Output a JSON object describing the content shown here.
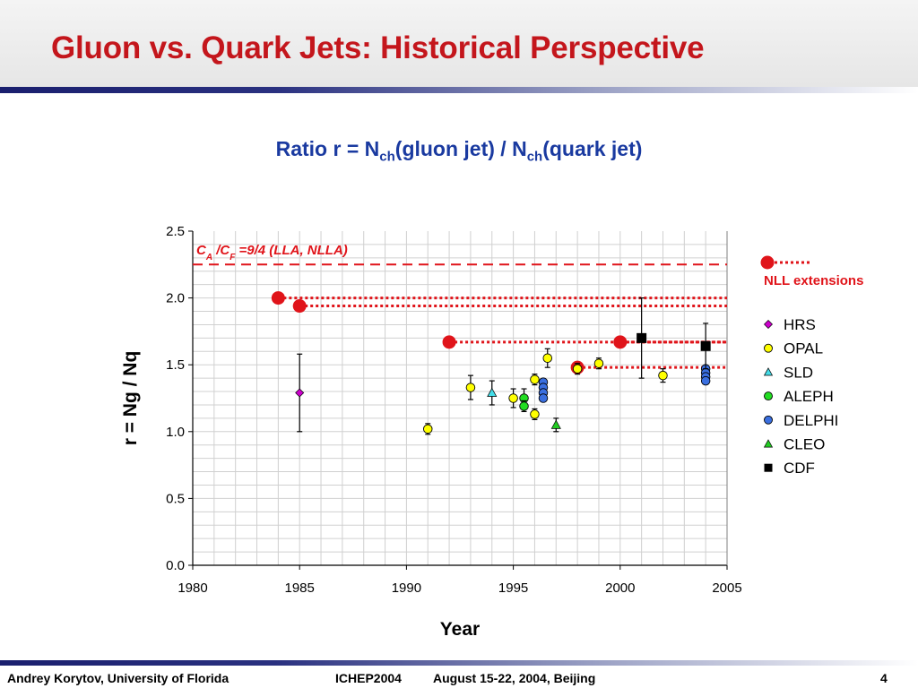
{
  "slide": {
    "title": "Gluon vs. Quark Jets: Historical Perspective",
    "subtitle_main": "Ratio r = N",
    "subtitle_sub1": "ch",
    "subtitle_mid": "(gluon jet) / N",
    "subtitle_sub2": "ch",
    "subtitle_end": "(quark jet)",
    "footer_author": "Andrey Korytov, University of Florida",
    "footer_conf": "ICHEP2004",
    "footer_dates": "August 15-22, 2004, Beijing",
    "footer_page": "4"
  },
  "chart_data": {
    "type": "scatter",
    "xlabel": "Year",
    "ylabel": "r = Ng / Nq",
    "xlim": [
      1980,
      2005
    ],
    "ylim": [
      0,
      2.5
    ],
    "xticks": [
      "1980",
      "1985",
      "1990",
      "1995",
      "2000",
      "2005"
    ],
    "yticks": [
      "0.0",
      "0.5",
      "1.0",
      "1.5",
      "2.0",
      "2.5"
    ],
    "grid": true,
    "legend_position": "right",
    "lla_line": {
      "value": 2.25,
      "label_ca": "C",
      "label_ca_sub": "A",
      "label_sep": " /C",
      "label_cf_sub": "F",
      "label_rest": " =9/4 (LLA, NLLA)",
      "color": "#e0141a"
    },
    "nll_extensions": {
      "name": "NLL extensions",
      "color": "#e0141a",
      "lines": [
        {
          "year": 1984,
          "value": 2.0
        },
        {
          "year": 1985,
          "value": 1.94
        },
        {
          "year": 1992,
          "value": 1.67
        },
        {
          "year": 1998,
          "value": 1.48
        },
        {
          "year": 2000,
          "value": 1.67
        }
      ]
    },
    "series": [
      {
        "name": "HRS",
        "color": "#cc00cc",
        "marker": "diamond",
        "points": [
          {
            "x": 1985,
            "y": 1.29,
            "err": 0.29
          }
        ]
      },
      {
        "name": "OPAL",
        "color": "#ffff00",
        "marker": "circle",
        "points": [
          {
            "x": 1991,
            "y": 1.02,
            "err": 0.04
          },
          {
            "x": 1993,
            "y": 1.33,
            "err": 0.09
          },
          {
            "x": 1995,
            "y": 1.25,
            "err": 0.07
          },
          {
            "x": 1996,
            "y": 1.39,
            "err": 0.04
          },
          {
            "x": 1996,
            "y": 1.13,
            "err": 0.04
          },
          {
            "x": 1996.6,
            "y": 1.55,
            "err": 0.07
          },
          {
            "x": 1998,
            "y": 1.47,
            "err": 0.04
          },
          {
            "x": 1999,
            "y": 1.51,
            "err": 0.04
          },
          {
            "x": 2002,
            "y": 1.42,
            "err": 0.05
          }
        ]
      },
      {
        "name": "SLD",
        "color": "#44dde8",
        "marker": "triangle",
        "points": [
          {
            "x": 1994,
            "y": 1.29,
            "err": 0.09
          }
        ]
      },
      {
        "name": "ALEPH",
        "color": "#22dd22",
        "marker": "circle",
        "points": [
          {
            "x": 1995.5,
            "y": 1.25,
            "err": 0.07
          },
          {
            "x": 1995.5,
            "y": 1.19,
            "err": 0.04
          }
        ]
      },
      {
        "name": "DELPHI",
        "color": "#3a6fe0",
        "marker": "circle",
        "points": [
          {
            "x": 1996.4,
            "y": 1.37,
            "err": 0
          },
          {
            "x": 1996.4,
            "y": 1.33,
            "err": 0
          },
          {
            "x": 1996.4,
            "y": 1.29,
            "err": 0
          },
          {
            "x": 1996.4,
            "y": 1.25,
            "err": 0
          },
          {
            "x": 2004,
            "y": 1.47,
            "err": 0
          },
          {
            "x": 2004,
            "y": 1.44,
            "err": 0
          },
          {
            "x": 2004,
            "y": 1.41,
            "err": 0
          },
          {
            "x": 2004,
            "y": 1.38,
            "err": 0
          }
        ]
      },
      {
        "name": "CLEO",
        "color": "#22cc22",
        "marker": "triangle",
        "points": [
          {
            "x": 1997,
            "y": 1.05,
            "err": 0.05
          }
        ]
      },
      {
        "name": "CDF",
        "color": "#000000",
        "marker": "square",
        "points": [
          {
            "x": 2001,
            "y": 1.7,
            "err": 0.3
          },
          {
            "x": 2004,
            "y": 1.64,
            "err": 0.17
          }
        ]
      }
    ]
  }
}
